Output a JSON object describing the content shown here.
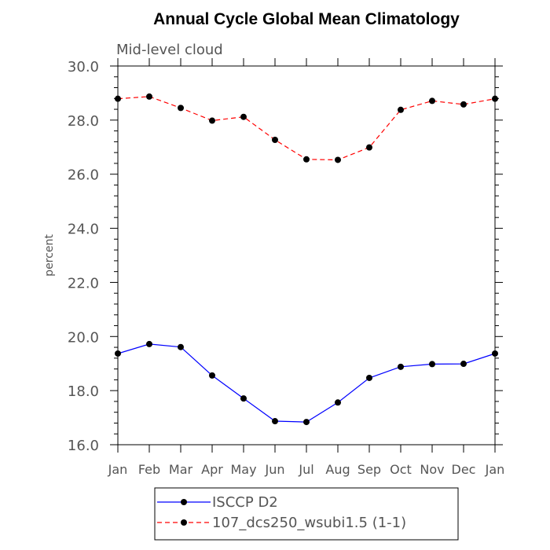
{
  "chart_data": {
    "type": "line",
    "title": "Annual Cycle Global Mean Climatology",
    "subtitle": "Mid-level cloud",
    "xlabel": "",
    "ylabel": "percent",
    "ylim": [
      16.0,
      30.0
    ],
    "yticks": [
      "16.0",
      "18.0",
      "20.0",
      "22.0",
      "24.0",
      "26.0",
      "28.0",
      "30.0"
    ],
    "categories": [
      "Jan",
      "Feb",
      "Mar",
      "Apr",
      "May",
      "Jun",
      "Jul",
      "Aug",
      "Sep",
      "Oct",
      "Nov",
      "Dec",
      "Jan"
    ],
    "series": [
      {
        "name": "ISCCP D2",
        "color": "#0000ff",
        "dash": "solid",
        "values": [
          19.37,
          19.72,
          19.61,
          18.56,
          17.71,
          16.87,
          16.84,
          17.56,
          18.47,
          18.88,
          18.98,
          18.99,
          19.37
        ]
      },
      {
        "name": "107_dcs250_wsubi1.5 (1-1)",
        "color": "#ff0000",
        "dash": "dashed",
        "values": [
          28.79,
          28.87,
          28.45,
          27.98,
          28.12,
          27.27,
          26.55,
          26.53,
          26.99,
          28.38,
          28.71,
          28.58,
          28.79
        ]
      }
    ],
    "legend_position": "bottom-center"
  }
}
